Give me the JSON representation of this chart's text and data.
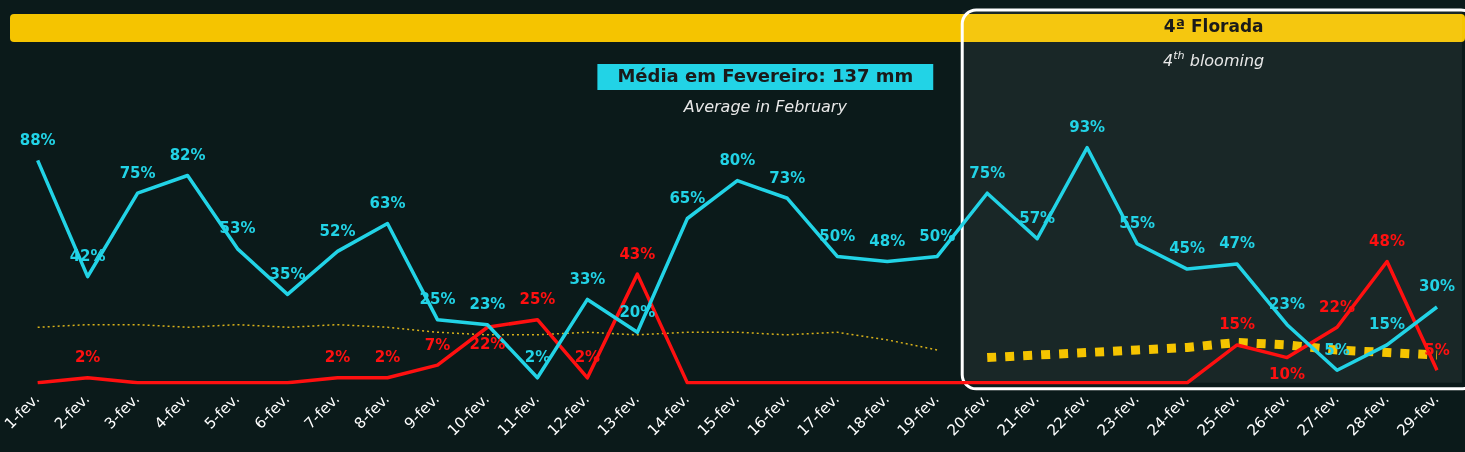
{
  "chart_data": {
    "type": "line",
    "categories": [
      "1-fev.",
      "2-fev.",
      "3-fev.",
      "4-fev.",
      "5-fev.",
      "6-fev.",
      "7-fev.",
      "8-fev.",
      "9-fev.",
      "10-fev.",
      "11-fev.",
      "12-fev.",
      "13-fev.",
      "14-fev.",
      "15-fev.",
      "16-fev.",
      "17-fev.",
      "18-fev.",
      "19-fev.",
      "20-fev.",
      "21-fev.",
      "22-fev.",
      "23-fev.",
      "24-fev.",
      "25-fev.",
      "26-fev.",
      "27-fev.",
      "28-fev.",
      "29-fev."
    ],
    "series": [
      {
        "color": "#22d3e6",
        "values": [
          88,
          42,
          75,
          82,
          53,
          35,
          52,
          63,
          25,
          23,
          2,
          33,
          20,
          65,
          80,
          73,
          50,
          48,
          50,
          75,
          57,
          93,
          55,
          45,
          47,
          23,
          5,
          15,
          30
        ],
        "value_labels": [
          "88%",
          "42%",
          "75%",
          "82%",
          "53%",
          "35%",
          "52%",
          "63%",
          "25%",
          "23%",
          "2%",
          "33%",
          "20%",
          "65%",
          "80%",
          "73%",
          "50%",
          "48%",
          "50%",
          "75%",
          "57%",
          "93%",
          "55%",
          "45%",
          "47%",
          "23%",
          "5%",
          "15%",
          "30%"
        ]
      },
      {
        "color": "#ff1010",
        "values": [
          0,
          2,
          0,
          0,
          0,
          0,
          2,
          2,
          7,
          22,
          25,
          2,
          43,
          0,
          0,
          0,
          0,
          0,
          0,
          0,
          0,
          0,
          0,
          0,
          15,
          10,
          22,
          48,
          5
        ],
        "value_labels": [
          null,
          "2%",
          null,
          null,
          null,
          null,
          "2%",
          "2%",
          "7%",
          "22%",
          "25%",
          "2%",
          "43%",
          null,
          null,
          null,
          null,
          null,
          null,
          null,
          null,
          null,
          null,
          null,
          "15%",
          "10%",
          "22%",
          "48%",
          "5%"
        ]
      },
      {
        "color": "#d9b21a",
        "line_style": "dotted",
        "values": [
          22,
          23,
          23,
          22,
          23,
          22,
          23,
          22,
          20,
          19,
          19,
          20,
          19,
          20,
          20,
          19,
          20,
          17,
          13,
          null,
          null,
          null,
          null,
          null,
          null,
          null,
          null,
          null,
          null
        ]
      },
      {
        "color": "#f5c400",
        "line_style": "dotted",
        "values": [
          null,
          null,
          null,
          null,
          null,
          null,
          null,
          null,
          null,
          null,
          null,
          null,
          null,
          null,
          null,
          null,
          null,
          null,
          null,
          10,
          11,
          12,
          13,
          14,
          16,
          15,
          13,
          12,
          11
        ]
      }
    ],
    "tick_labels": "x",
    "grid": false,
    "legend": false,
    "marker": "none",
    "line_style": "solid",
    "bands": [
      {
        "axis": "x",
        "from": "20-fev.",
        "to": "29-fev.",
        "label": "4ª Florada",
        "color": "#ffffff"
      }
    ],
    "annotations": [
      "Média em Fevereiro: 137 mm",
      "Average in February",
      "4$^{th}$ blooming"
    ]
  }
}
